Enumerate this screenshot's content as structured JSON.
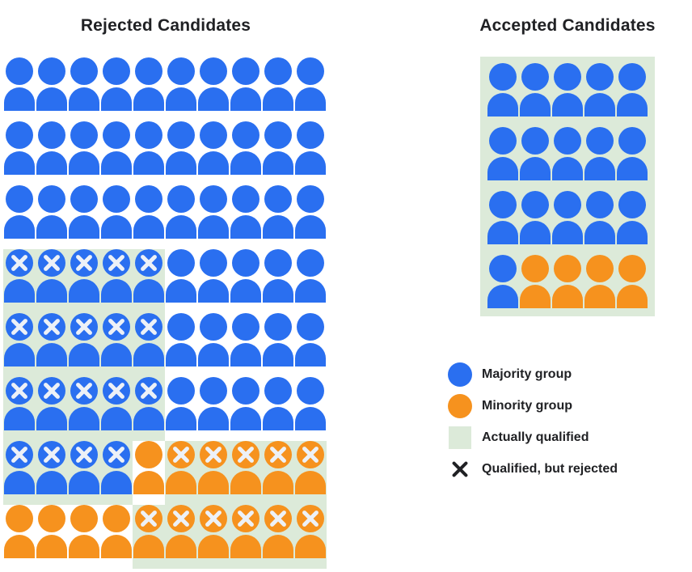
{
  "titles": {
    "rejected": "Rejected Candidates",
    "accepted": "Accepted Candidates"
  },
  "colors": {
    "majority_blue": "#2a6ff0",
    "minority_orange": "#f6921e",
    "qualified_green": "#dcead9",
    "icon_x": "#edf1f7",
    "text": "#202124"
  },
  "cell_codes": {
    "B": "majority (blue) candidate",
    "O": "minority (orange) candidate",
    "G": "actually qualified (green background)",
    "X": "qualified but rejected (x mark on icon)"
  },
  "rejected_grid": {
    "columns": 10,
    "rows": [
      [
        "B",
        "B",
        "B",
        "B",
        "B",
        "B",
        "B",
        "B",
        "B",
        "B"
      ],
      [
        "B",
        "B",
        "B",
        "B",
        "B",
        "B",
        "B",
        "B",
        "B",
        "B"
      ],
      [
        "B",
        "B",
        "B",
        "B",
        "B",
        "B",
        "B",
        "B",
        "B",
        "B"
      ],
      [
        "BXG",
        "BXG",
        "BXG",
        "BXG",
        "BXG",
        "B",
        "B",
        "B",
        "B",
        "B"
      ],
      [
        "BXG",
        "BXG",
        "BXG",
        "BXG",
        "BXG",
        "B",
        "B",
        "B",
        "B",
        "B"
      ],
      [
        "BXG",
        "BXG",
        "BXG",
        "BXG",
        "BXG",
        "B",
        "B",
        "B",
        "B",
        "B"
      ],
      [
        "BXG",
        "BXG",
        "BXG",
        "BXG",
        "O",
        "OXG",
        "OXG",
        "OXG",
        "OXG",
        "OXG"
      ],
      [
        "O",
        "O",
        "O",
        "O",
        "OXG",
        "OXG",
        "OXG",
        "OXG",
        "OXG",
        "OXG"
      ]
    ]
  },
  "accepted_grid": {
    "columns": 5,
    "rows": [
      [
        "BG",
        "BG",
        "BG",
        "BG",
        "BG"
      ],
      [
        "BG",
        "BG",
        "BG",
        "BG",
        "BG"
      ],
      [
        "BG",
        "BG",
        "BG",
        "BG",
        "BG"
      ],
      [
        "BG",
        "OG",
        "OG",
        "OG",
        "OG"
      ]
    ]
  },
  "legend": {
    "items": [
      {
        "swatch": "majority-circle",
        "label": "Majority group"
      },
      {
        "swatch": "minority-circle",
        "label": "Minority group"
      },
      {
        "swatch": "qualified-square",
        "label": "Actually qualified"
      },
      {
        "swatch": "x-mark",
        "label": "Qualified, but rejected"
      }
    ]
  }
}
